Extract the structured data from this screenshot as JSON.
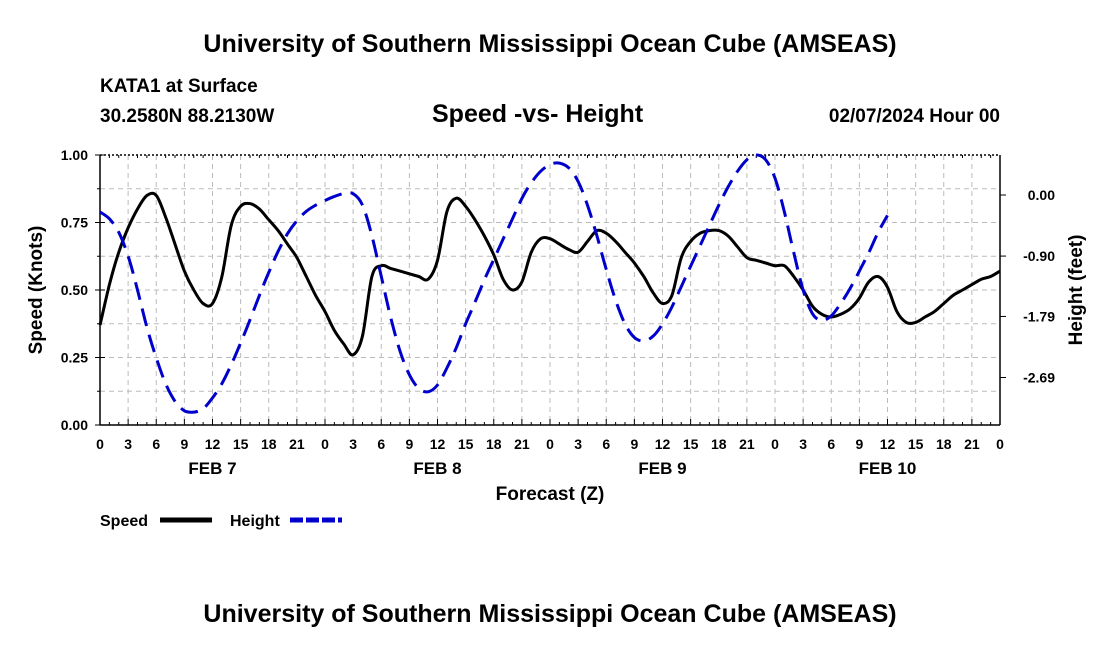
{
  "header": {
    "top_title": "University of Southern Mississippi Ocean Cube (AMSEAS)",
    "station": "KATA1 at Surface",
    "coords": "30.2580N  88.2130W",
    "subtitle": "Speed -vs- Height",
    "datetime": "02/07/2024 Hour 00",
    "bottom_title": "University of Southern Mississippi Ocean Cube (AMSEAS)"
  },
  "chart_data": {
    "type": "line",
    "title": "Speed -vs- Height",
    "xlabel": "Forecast (Z)",
    "ylabel_left": "Speed (Knots)",
    "ylabel_right": "Height (feet)",
    "x_range_hours": [
      0,
      96
    ],
    "x_tick_step_hours": 3,
    "x_tick_labels": [
      "0",
      "3",
      "6",
      "9",
      "12",
      "15",
      "18",
      "21",
      "0",
      "3",
      "6",
      "9",
      "12",
      "15",
      "18",
      "21",
      "0",
      "3",
      "6",
      "9",
      "12",
      "15",
      "18",
      "21",
      "0",
      "3",
      "6",
      "9",
      "12",
      "15",
      "18",
      "21",
      "0"
    ],
    "day_labels": [
      {
        "label": "FEB 7",
        "hour": 12
      },
      {
        "label": "FEB 8",
        "hour": 36
      },
      {
        "label": "FEB 9",
        "hour": 60
      },
      {
        "label": "FEB 10",
        "hour": 84
      }
    ],
    "left_axis": {
      "range": [
        0,
        1
      ],
      "ticks": [
        0,
        0.25,
        0.5,
        0.75,
        1.0
      ],
      "tick_labels": [
        "0.00",
        "0.25",
        "0.50",
        "0.75",
        "1.00"
      ]
    },
    "right_axis": {
      "range": [
        -3.39,
        0.59
      ],
      "ticks": [
        0,
        -0.9,
        -1.79,
        -2.69
      ],
      "tick_labels": [
        "0.00",
        "-0.90",
        "-1.79",
        "-2.69"
      ]
    },
    "grid": true,
    "legend": [
      {
        "name": "Speed",
        "color": "#000000",
        "dash": "solid"
      },
      {
        "name": "Height",
        "color": "#0000cc",
        "dash": "dashed"
      }
    ],
    "series": [
      {
        "name": "Speed",
        "axis": "left",
        "color": "#000000",
        "points": [
          [
            0,
            0.37
          ],
          [
            1,
            0.52
          ],
          [
            2,
            0.64
          ],
          [
            3,
            0.73
          ],
          [
            4,
            0.8
          ],
          [
            5,
            0.85
          ],
          [
            6,
            0.85
          ],
          [
            7,
            0.77
          ],
          [
            8,
            0.67
          ],
          [
            9,
            0.57
          ],
          [
            10,
            0.5
          ],
          [
            11,
            0.45
          ],
          [
            12,
            0.45
          ],
          [
            13,
            0.55
          ],
          [
            14,
            0.74
          ],
          [
            15,
            0.81
          ],
          [
            16,
            0.82
          ],
          [
            17,
            0.8
          ],
          [
            18,
            0.76
          ],
          [
            19,
            0.72
          ],
          [
            20,
            0.67
          ],
          [
            21,
            0.62
          ],
          [
            22,
            0.55
          ],
          [
            23,
            0.48
          ],
          [
            24,
            0.42
          ],
          [
            25,
            0.35
          ],
          [
            26,
            0.3
          ],
          [
            27,
            0.26
          ],
          [
            28,
            0.33
          ],
          [
            29,
            0.55
          ],
          [
            30,
            0.59
          ],
          [
            31,
            0.58
          ],
          [
            32,
            0.57
          ],
          [
            33,
            0.56
          ],
          [
            34,
            0.55
          ],
          [
            35,
            0.54
          ],
          [
            36,
            0.61
          ],
          [
            37,
            0.79
          ],
          [
            38,
            0.84
          ],
          [
            39,
            0.81
          ],
          [
            40,
            0.76
          ],
          [
            41,
            0.7
          ],
          [
            42,
            0.63
          ],
          [
            43,
            0.54
          ],
          [
            44,
            0.5
          ],
          [
            45,
            0.53
          ],
          [
            46,
            0.64
          ],
          [
            47,
            0.69
          ],
          [
            48,
            0.69
          ],
          [
            49,
            0.67
          ],
          [
            50,
            0.65
          ],
          [
            51,
            0.64
          ],
          [
            52,
            0.68
          ],
          [
            53,
            0.72
          ],
          [
            54,
            0.71
          ],
          [
            55,
            0.68
          ],
          [
            56,
            0.64
          ],
          [
            57,
            0.6
          ],
          [
            58,
            0.55
          ],
          [
            59,
            0.49
          ],
          [
            60,
            0.45
          ],
          [
            61,
            0.48
          ],
          [
            62,
            0.62
          ],
          [
            63,
            0.68
          ],
          [
            64,
            0.71
          ],
          [
            65,
            0.72
          ],
          [
            66,
            0.72
          ],
          [
            67,
            0.7
          ],
          [
            68,
            0.66
          ],
          [
            69,
            0.62
          ],
          [
            70,
            0.61
          ],
          [
            71,
            0.6
          ],
          [
            72,
            0.59
          ],
          [
            73,
            0.59
          ],
          [
            74,
            0.55
          ],
          [
            75,
            0.5
          ],
          [
            76,
            0.44
          ],
          [
            77,
            0.41
          ],
          [
            78,
            0.4
          ],
          [
            79,
            0.41
          ],
          [
            80,
            0.43
          ],
          [
            81,
            0.47
          ],
          [
            82,
            0.53
          ],
          [
            83,
            0.55
          ],
          [
            84,
            0.51
          ],
          [
            85,
            0.42
          ],
          [
            86,
            0.38
          ],
          [
            87,
            0.38
          ],
          [
            88,
            0.4
          ],
          [
            89,
            0.42
          ],
          [
            90,
            0.45
          ],
          [
            91,
            0.48
          ],
          [
            92,
            0.5
          ],
          [
            93,
            0.52
          ],
          [
            94,
            0.54
          ],
          [
            95,
            0.55
          ],
          [
            96,
            0.57
          ]
        ]
      },
      {
        "name": "Height",
        "axis": "right",
        "color": "#0000cc",
        "points": [
          [
            0,
            -0.25
          ],
          [
            1,
            -0.35
          ],
          [
            2,
            -0.55
          ],
          [
            3,
            -0.9
          ],
          [
            4,
            -1.4
          ],
          [
            5,
            -1.95
          ],
          [
            6,
            -2.4
          ],
          [
            7,
            -2.78
          ],
          [
            8,
            -3.04
          ],
          [
            9,
            -3.18
          ],
          [
            10,
            -3.2
          ],
          [
            11,
            -3.15
          ],
          [
            12,
            -2.99
          ],
          [
            13,
            -2.78
          ],
          [
            14,
            -2.5
          ],
          [
            15,
            -2.18
          ],
          [
            16,
            -1.84
          ],
          [
            17,
            -1.48
          ],
          [
            18,
            -1.14
          ],
          [
            19,
            -0.83
          ],
          [
            20,
            -0.57
          ],
          [
            21,
            -0.38
          ],
          [
            22,
            -0.24
          ],
          [
            23,
            -0.15
          ],
          [
            24,
            -0.08
          ],
          [
            25,
            -0.02
          ],
          [
            26,
            0.02
          ],
          [
            27,
            0.02
          ],
          [
            28,
            -0.15
          ],
          [
            29,
            -0.6
          ],
          [
            30,
            -1.2
          ],
          [
            31,
            -1.8
          ],
          [
            32,
            -2.3
          ],
          [
            33,
            -2.65
          ],
          [
            34,
            -2.85
          ],
          [
            35,
            -2.9
          ],
          [
            36,
            -2.8
          ],
          [
            37,
            -2.55
          ],
          [
            38,
            -2.25
          ],
          [
            39,
            -1.9
          ],
          [
            40,
            -1.58
          ],
          [
            41,
            -1.25
          ],
          [
            42,
            -0.95
          ],
          [
            43,
            -0.65
          ],
          [
            44,
            -0.35
          ],
          [
            45,
            -0.05
          ],
          [
            46,
            0.18
          ],
          [
            47,
            0.35
          ],
          [
            48,
            0.45
          ],
          [
            49,
            0.47
          ],
          [
            50,
            0.4
          ],
          [
            51,
            0.2
          ],
          [
            52,
            -0.15
          ],
          [
            53,
            -0.6
          ],
          [
            54,
            -1.1
          ],
          [
            55,
            -1.55
          ],
          [
            56,
            -1.9
          ],
          [
            57,
            -2.1
          ],
          [
            58,
            -2.15
          ],
          [
            59,
            -2.08
          ],
          [
            60,
            -1.9
          ],
          [
            61,
            -1.65
          ],
          [
            62,
            -1.35
          ],
          [
            63,
            -1.05
          ],
          [
            64,
            -0.75
          ],
          [
            65,
            -0.45
          ],
          [
            66,
            -0.15
          ],
          [
            67,
            0.12
          ],
          [
            68,
            0.35
          ],
          [
            69,
            0.52
          ],
          [
            70,
            0.59
          ],
          [
            71,
            0.52
          ],
          [
            72,
            0.25
          ],
          [
            73,
            -0.25
          ],
          [
            74,
            -0.85
          ],
          [
            75,
            -1.4
          ],
          [
            76,
            -1.75
          ],
          [
            77,
            -1.85
          ],
          [
            78,
            -1.78
          ],
          [
            79,
            -1.6
          ],
          [
            80,
            -1.38
          ],
          [
            81,
            -1.12
          ],
          [
            82,
            -0.85
          ],
          [
            83,
            -0.55
          ],
          [
            84,
            -0.3
          ]
        ]
      }
    ]
  }
}
